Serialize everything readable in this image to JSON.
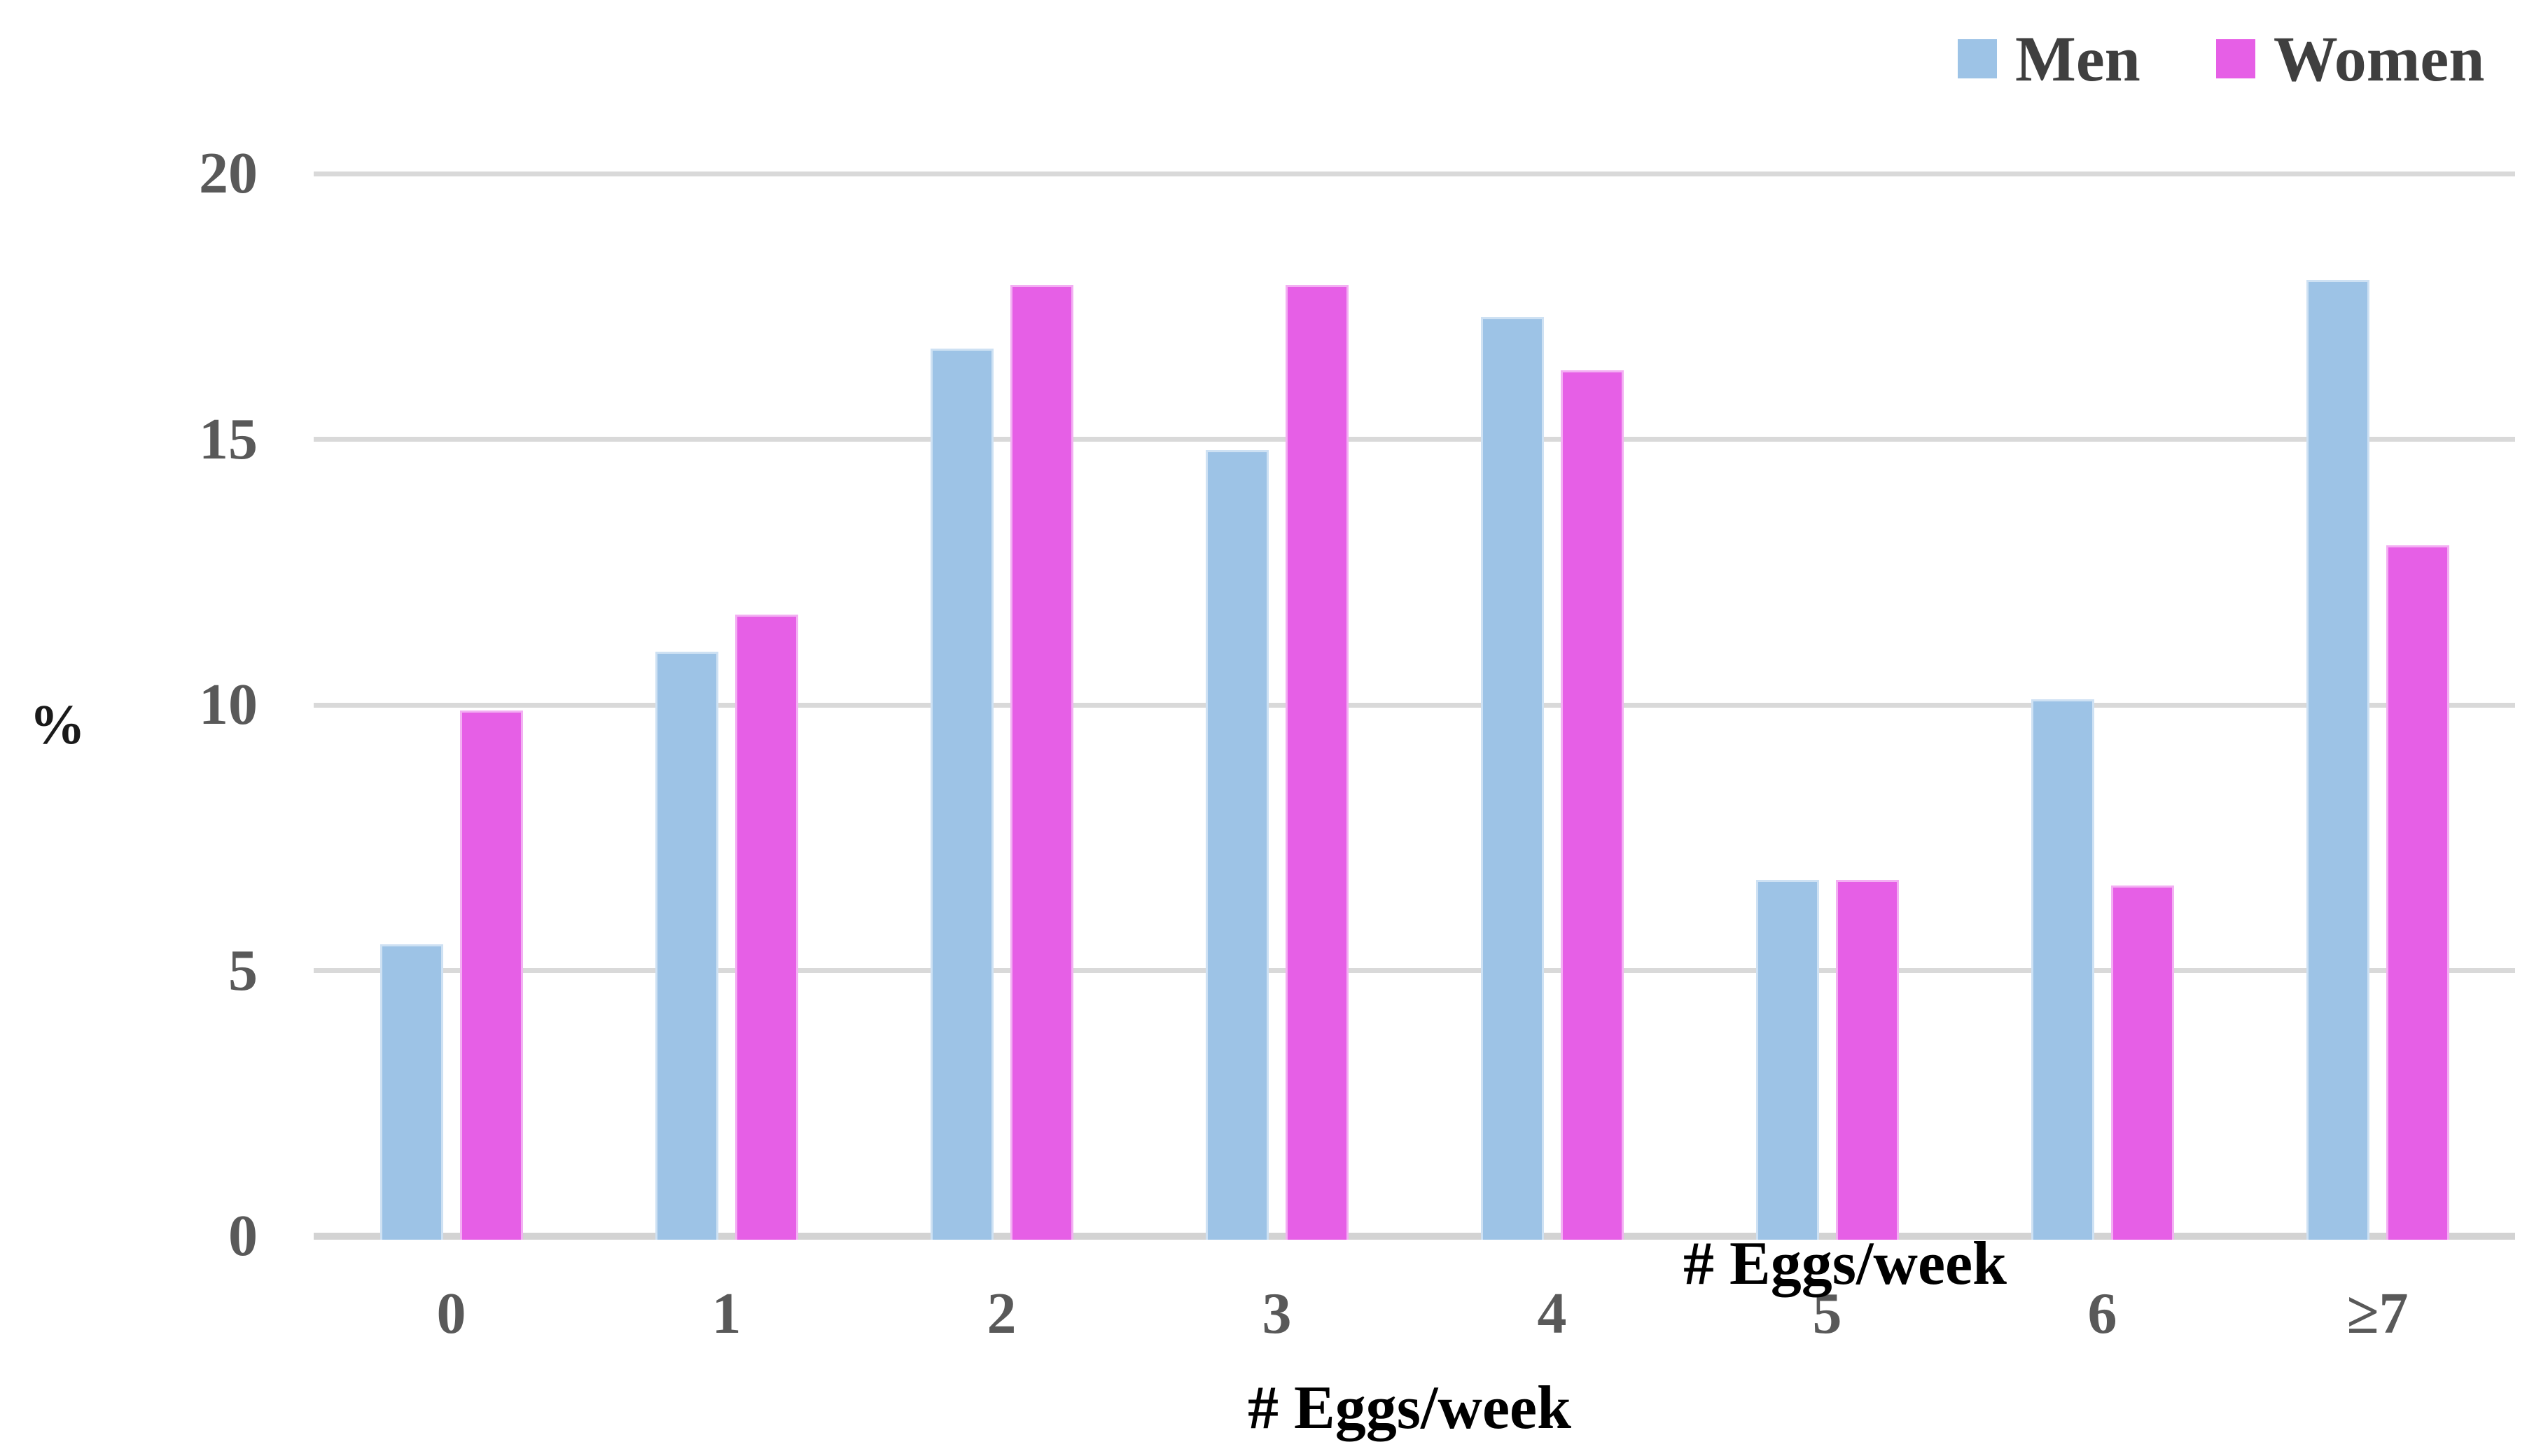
{
  "chart_data": {
    "type": "bar",
    "title": "",
    "categories": [
      "0",
      "1",
      "2",
      "3",
      "4",
      "5",
      "6",
      "≥7"
    ],
    "series": [
      {
        "name": "Men",
        "color": "#9DC3E6",
        "values": [
          5.5,
          11.0,
          16.7,
          14.8,
          17.3,
          6.7,
          10.1,
          18.0
        ]
      },
      {
        "name": "Women",
        "color": "#E65FE6",
        "values": [
          9.9,
          11.7,
          17.9,
          17.9,
          16.3,
          6.7,
          6.6,
          13.0
        ]
      }
    ],
    "xlabel": "# Eggs/week",
    "stray_axis_label": "# Eggs/week",
    "ylabel": "%",
    "yticks": [
      0,
      5,
      10,
      15,
      20
    ],
    "ylim": [
      0,
      20
    ],
    "grid": true,
    "legend_position": "top-right",
    "gridline_color": "#D9D9D9",
    "axis_line_color": "#D3D3D3",
    "tick_label_color": "#595959",
    "legend_text_color": "#3F3F3F",
    "axis_title_color": "#000000"
  }
}
